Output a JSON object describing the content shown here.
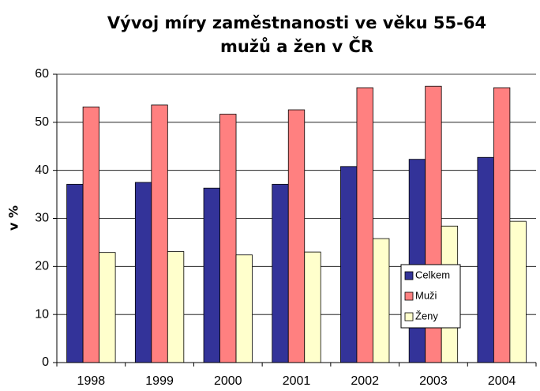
{
  "chart_data": {
    "type": "bar",
    "title": [
      "Vývoj míry zaměstnanosti ve věku 55-64",
      "mužů a žen v ČR"
    ],
    "y_label": "v %",
    "categories": [
      "1998",
      "1999",
      "2000",
      "2001",
      "2002",
      "2003",
      "2004"
    ],
    "series": [
      {
        "name": "Celkem",
        "color": "#333399",
        "values": [
          37.1,
          37.5,
          36.3,
          37.1,
          40.8,
          42.3,
          42.7
        ]
      },
      {
        "name": "Muži",
        "color": "#ff8080",
        "values": [
          53.2,
          53.6,
          51.7,
          52.6,
          57.2,
          57.5,
          57.2
        ]
      },
      {
        "name": "Ženy",
        "color": "#ffffcc",
        "values": [
          22.9,
          23.1,
          22.4,
          23.0,
          25.8,
          28.4,
          29.4
        ]
      }
    ],
    "ylim": [
      0,
      60
    ],
    "yticks": [
      0,
      10,
      20,
      30,
      40,
      50,
      60
    ],
    "grid": true
  }
}
